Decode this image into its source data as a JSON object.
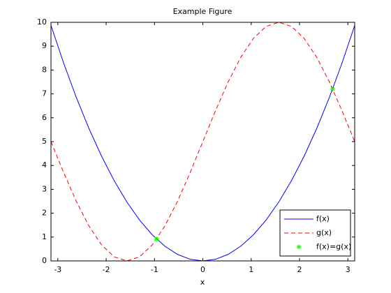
{
  "chart_data": {
    "type": "line",
    "title": "Example Figure",
    "x_label": "x",
    "x": [
      -3.1416,
      -2.8798,
      -2.618,
      -2.3562,
      -2.0944,
      -1.8326,
      -1.5708,
      -1.309,
      -1.0472,
      -0.7854,
      -0.5236,
      -0.2618,
      0,
      0.2618,
      0.5236,
      0.7854,
      1.0472,
      1.309,
      1.5708,
      1.8326,
      2.0944,
      2.3562,
      2.618,
      2.8798,
      3.1416
    ],
    "series": [
      {
        "name": "f(x)",
        "color": "#0000ff",
        "line_style": "solid",
        "values": [
          9.8696,
          8.2932,
          6.8539,
          5.5517,
          4.3865,
          3.3584,
          2.4674,
          1.7135,
          1.0966,
          0.6169,
          0.2742,
          0.0685,
          0,
          0.0685,
          0.2742,
          0.6169,
          1.0966,
          1.7135,
          2.4674,
          3.3584,
          4.3865,
          5.5517,
          6.8539,
          8.2932,
          9.8696
        ]
      },
      {
        "name": "g(x)",
        "color": "#ff0000",
        "line_style": "dashed",
        "values": [
          5,
          3.706,
          2.5,
          1.4645,
          0.67,
          0.1705,
          0,
          0.1705,
          0.67,
          1.4645,
          2.5,
          3.706,
          5,
          6.294,
          7.5,
          8.5355,
          9.33,
          9.8295,
          10,
          9.8295,
          9.33,
          8.5355,
          7.5,
          6.294,
          5
        ]
      },
      {
        "name": "f(x)=g(x)",
        "color": "#00ff00",
        "marker": "*",
        "x": [
          -0.957,
          2.684
        ],
        "values": [
          0.916,
          7.205
        ]
      }
    ],
    "xlim": [
      -3.1416,
      3.1416
    ],
    "xticks": [
      -3,
      -2,
      -1,
      0,
      1,
      2,
      3
    ],
    "ylim": [
      0,
      10
    ],
    "yticks": [
      0,
      1,
      2,
      3,
      4,
      5,
      6,
      7,
      8,
      9,
      10
    ],
    "legend": "southeast"
  }
}
